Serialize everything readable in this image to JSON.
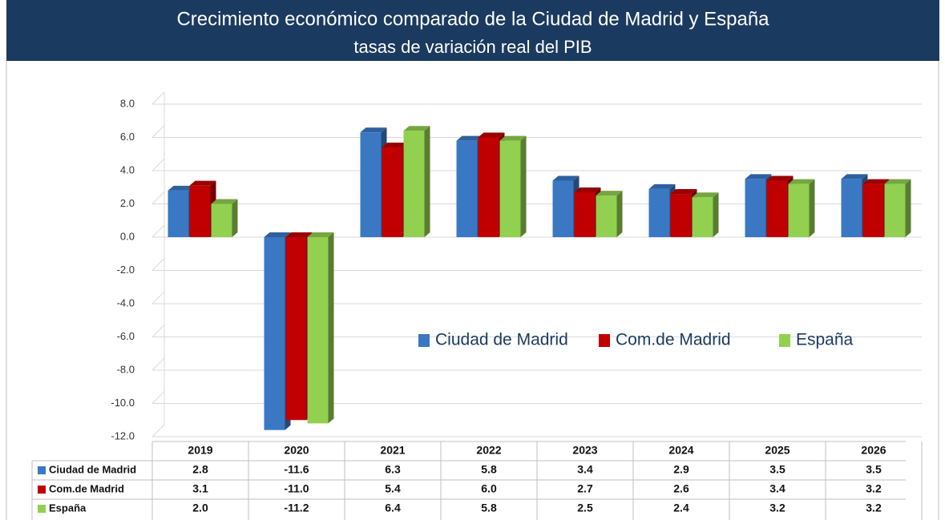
{
  "chart_data": {
    "type": "bar",
    "title": "Crecimiento económico comparado de la Ciudad de Madrid y España",
    "subtitle": "tasas de variación real del PIB",
    "categories": [
      "2019",
      "2020",
      "2021",
      "2022",
      "2023",
      "2024",
      "2025",
      "2026"
    ],
    "series": [
      {
        "name": "Ciudad de Madrid",
        "color": "#3a78c4",
        "values": [
          2.8,
          -11.6,
          6.3,
          5.8,
          3.4,
          2.9,
          3.5,
          3.5
        ],
        "value_labels": [
          "2.8",
          "-11.6",
          "6.3",
          "5.8",
          "3.4",
          "2.9",
          "3.5",
          "3.5"
        ]
      },
      {
        "name": "Com.de Madrid",
        "color": "#c00000",
        "values": [
          3.1,
          -11.0,
          5.4,
          6.0,
          2.7,
          2.6,
          3.4,
          3.2
        ],
        "value_labels": [
          "3.1",
          "-11.0",
          "5.4",
          "6.0",
          "2.7",
          "2.6",
          "3.4",
          "3.2"
        ]
      },
      {
        "name": "España",
        "color": "#92d050",
        "values": [
          2.0,
          -11.2,
          6.4,
          5.8,
          2.5,
          2.4,
          3.2,
          3.2
        ],
        "value_labels": [
          "2.0",
          "-11.2",
          "6.4",
          "5.8",
          "2.5",
          "2.4",
          "3.2",
          "3.2"
        ]
      }
    ],
    "ylim": [
      -12,
      8
    ],
    "yticks": [
      {
        "value": -12,
        "label": "-12.0"
      },
      {
        "value": -10,
        "label": "-10.0"
      },
      {
        "value": -8,
        "label": "-8.0"
      },
      {
        "value": -6,
        "label": "-6.0"
      },
      {
        "value": -4,
        "label": "-4.0"
      },
      {
        "value": -2,
        "label": "-2.0"
      },
      {
        "value": 0,
        "label": "0.0"
      },
      {
        "value": 2,
        "label": "2.0"
      },
      {
        "value": 4,
        "label": "4.0"
      },
      {
        "value": 6,
        "label": "6.0"
      },
      {
        "value": 8,
        "label": "8.0"
      }
    ],
    "grid": true
  }
}
